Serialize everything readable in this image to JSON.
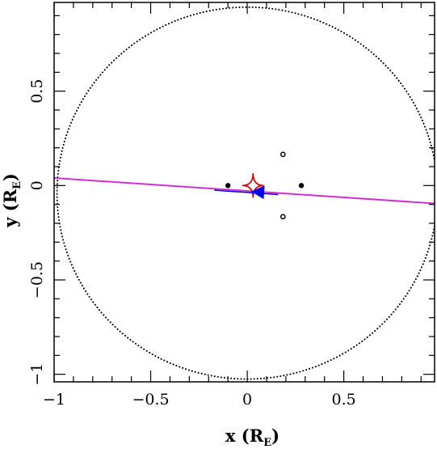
{
  "chart_data": {
    "type": "scatter",
    "title": "",
    "xlabel": {
      "main": "x (R",
      "sub": "E",
      "close": ")"
    },
    "ylabel": {
      "main": "y (R",
      "sub": "E",
      "close": ")"
    },
    "xlim": [
      -1.0,
      0.97
    ],
    "ylim": [
      -1.04,
      0.97
    ],
    "x_major_ticks": [
      -1,
      -0.5,
      0,
      0.5
    ],
    "x_tick_labels": [
      "−1",
      "−0.5",
      "0",
      "0.5"
    ],
    "y_major_ticks": [
      -1,
      -0.5,
      0,
      0.5
    ],
    "y_tick_labels": [
      "−1",
      "−0.5",
      "0",
      "0.5"
    ],
    "minor_tick_step": 0.1,
    "grid": false,
    "einstein_ring": {
      "cx": 0.0,
      "cy": -0.04,
      "r": 0.985,
      "style": "dotted",
      "color": "#000000"
    },
    "source_trajectory": {
      "points": [
        [
          -1.0,
          0.04
        ],
        [
          0.97,
          -0.095
        ]
      ],
      "color": "#cc33cc"
    },
    "caustic": {
      "color": "#cc0000",
      "cusps": [
        [
          -0.025,
          0.0
        ],
        [
          0.03,
          0.065
        ],
        [
          0.085,
          0.0
        ],
        [
          0.03,
          -0.065
        ]
      ]
    },
    "lenses_filled": [
      [
        -0.1,
        0.0
      ],
      [
        0.28,
        0.0
      ]
    ],
    "lenses_open": [
      [
        0.185,
        0.165
      ],
      [
        0.185,
        -0.165
      ]
    ],
    "blue_shape": {
      "color": "#0000ee",
      "line": [
        [
          -0.17,
          -0.025
        ],
        [
          0.16,
          -0.048
        ]
      ],
      "arrow": [
        [
          0.02,
          -0.032
        ],
        [
          0.09,
          0.0
        ],
        [
          0.085,
          -0.072
        ]
      ]
    }
  }
}
